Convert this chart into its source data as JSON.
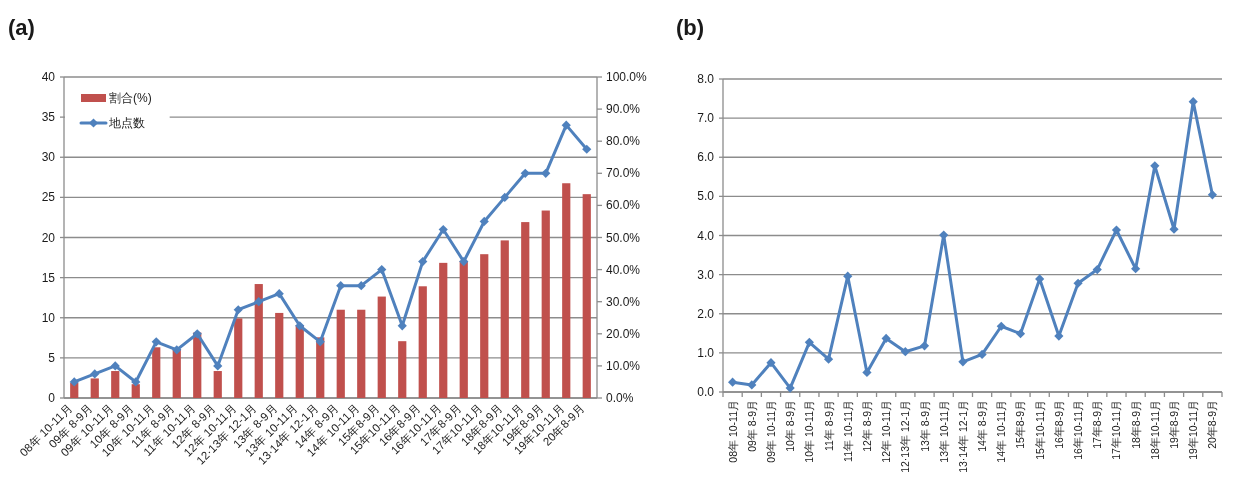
{
  "chart_data": [
    {
      "type": "bar",
      "title": "(a)",
      "categories": [
        "08年 10-11月",
        "09年 8-9月",
        "09年 10-11月",
        "10年 8-9月",
        "10年 10-11月",
        "11年 8-9月",
        "11年 10-11月",
        "12年 8-9月",
        "12年 10-11月",
        "12·13年 12-1月",
        "13年 8-9月",
        "13年 10-11月",
        "13·14年 12-1月",
        "14年 8-9月",
        "14年 10-11月",
        "15年8-9月",
        "15年10-11月",
        "16年8-9月",
        "16年10-11月",
        "17年8-9月",
        "17年10-11月",
        "18年8-9月",
        "18年10-11月",
        "19年8-9月",
        "19年10-11月",
        "20年8-9月"
      ],
      "series": [
        {
          "name": "割合(%)",
          "axis": "y2",
          "color": "#c0504d",
          "values": [
            4.7,
            6.1,
            8.4,
            4.3,
            15.8,
            15.3,
            20.4,
            8.4,
            24.8,
            35.5,
            26.5,
            22.7,
            18.9,
            27.5,
            27.5,
            31.6,
            17.7,
            34.8,
            42.1,
            42.7,
            44.8,
            49.1,
            54.8,
            58.4,
            66.9,
            63.5
          ]
        },
        {
          "name": "地点数",
          "type": "line",
          "color": "#4f81bd",
          "values": [
            2,
            3,
            4,
            2,
            7,
            6,
            8,
            4,
            11,
            12,
            13,
            9,
            7,
            14,
            14,
            16,
            9,
            17,
            21,
            17,
            22,
            25,
            28,
            28,
            34,
            31
          ]
        }
      ],
      "marker": "diamond",
      "ylim": [
        0,
        40
      ],
      "yticks": [
        0,
        5,
        10,
        15,
        20,
        25,
        30,
        35,
        40
      ],
      "y2lim": [
        0,
        100
      ],
      "y2ticks": [
        {
          "value": 0,
          "label": "0.0%"
        },
        {
          "value": 10,
          "label": "10.0%"
        },
        {
          "value": 20,
          "label": "20.0%"
        },
        {
          "value": 30,
          "label": "30.0%"
        },
        {
          "value": 40,
          "label": "40.0%"
        },
        {
          "value": 50,
          "label": "50.0%"
        },
        {
          "value": 60,
          "label": "60.0%"
        },
        {
          "value": 70,
          "label": "70.0%"
        },
        {
          "value": 80,
          "label": "80.0%"
        },
        {
          "value": 90,
          "label": "90.0%"
        },
        {
          "value": 100,
          "label": "100.0%"
        }
      ],
      "grid": "y",
      "legend": "top left"
    },
    {
      "type": "line",
      "title": "(b)",
      "categories": [
        "08年 10-11月",
        "09年 8-9月",
        "09年 10-11月",
        "10年 8-9月",
        "10年 10-11月",
        "11年 8-9月",
        "11年 10-11月",
        "12年 8-9月",
        "12年 10-11月",
        "12·13年 12-1月",
        "13年 8-9月",
        "13年 10-11月",
        "13·14年 12-1月",
        "14年 8-9月",
        "14年 10-11月",
        "15年8-9月",
        "15年10-11月",
        "16年8-9月",
        "16年10-11月",
        "17年8-9月",
        "17年10-11月",
        "18年8-9月",
        "18年10-11月",
        "19年8-9月",
        "19年10-11月",
        "20年8-9月"
      ],
      "values": [
        0.25,
        0.18,
        0.75,
        0.1,
        1.27,
        0.84,
        2.96,
        0.5,
        1.37,
        1.03,
        1.18,
        4.01,
        0.77,
        0.96,
        1.68,
        1.49,
        2.89,
        1.43,
        2.78,
        3.13,
        4.14,
        3.15,
        5.78,
        4.16,
        7.42,
        5.04
      ],
      "color": "#4f81bd",
      "marker": "diamond",
      "ylim": [
        0,
        8
      ],
      "yticks": [
        {
          "value": 0,
          "label": "0.0"
        },
        {
          "value": 1,
          "label": "1.0"
        },
        {
          "value": 2,
          "label": "2.0"
        },
        {
          "value": 3,
          "label": "3.0"
        },
        {
          "value": 4,
          "label": "4.0"
        },
        {
          "value": 5,
          "label": "5.0"
        },
        {
          "value": 6,
          "label": "6.0"
        },
        {
          "value": 7,
          "label": "7.0"
        },
        {
          "value": 8,
          "label": "8.0"
        }
      ],
      "grid": "y"
    }
  ]
}
